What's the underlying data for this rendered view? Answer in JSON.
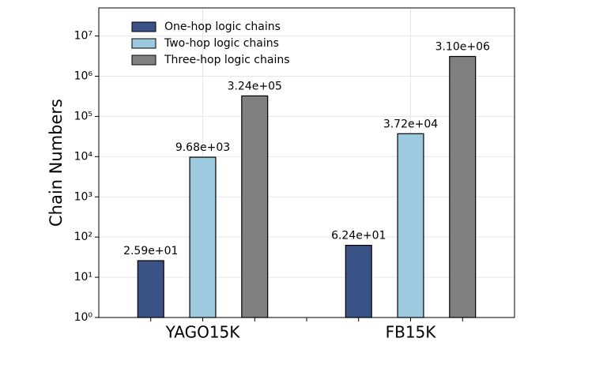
{
  "chart_data": {
    "type": "bar",
    "y_label": "Chain Numbers",
    "categories": [
      "YAGO15K",
      "FB15K"
    ],
    "series": [
      {
        "name": "One-hop logic chains",
        "color": "#3b5286",
        "values": [
          25.9,
          62.4
        ],
        "value_labels": [
          "2.59e+01",
          "6.24e+01"
        ]
      },
      {
        "name": "Two-hop logic chains",
        "color": "#9ecae0",
        "values": [
          9680,
          37200
        ],
        "value_labels": [
          "9.68e+03",
          "3.72e+04"
        ]
      },
      {
        "name": "Three-hop logic chains",
        "color": "#808080",
        "values": [
          324000,
          3100000
        ],
        "value_labels": [
          "3.24e+05",
          "3.10e+06"
        ]
      }
    ],
    "log_scale": true,
    "ylim": [
      1,
      50000000
    ],
    "yticks": [
      {
        "value": 1,
        "label": "10⁰"
      },
      {
        "value": 10,
        "label": "10¹"
      },
      {
        "value": 100,
        "label": "10²"
      },
      {
        "value": 1000,
        "label": "10³"
      },
      {
        "value": 10000,
        "label": "10⁴"
      },
      {
        "value": 100000,
        "label": "10⁵"
      },
      {
        "value": 1000000,
        "label": "10⁶"
      },
      {
        "value": 10000000,
        "label": "10⁷"
      }
    ],
    "grid": true,
    "legend": "upper-left"
  }
}
